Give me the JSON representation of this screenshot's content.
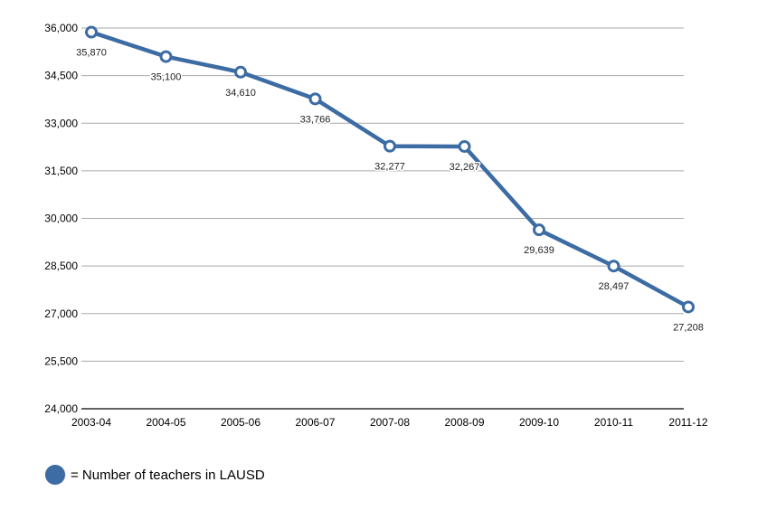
{
  "chart_data": {
    "type": "line",
    "categories": [
      "2003-04",
      "2004-05",
      "2005-06",
      "2006-07",
      "2007-08",
      "2008-09",
      "2009-10",
      "2010-11",
      "2011-12"
    ],
    "series": [
      {
        "name": "Number of teachers in LAUSD",
        "values": [
          35870,
          35100,
          34610,
          33766,
          32277,
          32267,
          29639,
          28497,
          27208
        ],
        "data_labels": [
          "35,870",
          "35,100",
          "34,610",
          "33,766",
          "32,277",
          "32,267",
          "29,639",
          "28,497",
          "27,208"
        ],
        "color": "#3c6ca3"
      }
    ],
    "ylim": [
      24000,
      36000
    ],
    "yticks": [
      24000,
      25500,
      27000,
      28500,
      30000,
      31500,
      33000,
      34500,
      36000
    ],
    "ytick_labels": [
      "24,000",
      "25,500",
      "27,000",
      "28,500",
      "30,000",
      "31,500",
      "33,000",
      "34,500",
      "36,000"
    ],
    "grid": true,
    "legend_position": "bottom-left"
  },
  "legend": {
    "text": "= Number of teachers in LAUSD"
  }
}
